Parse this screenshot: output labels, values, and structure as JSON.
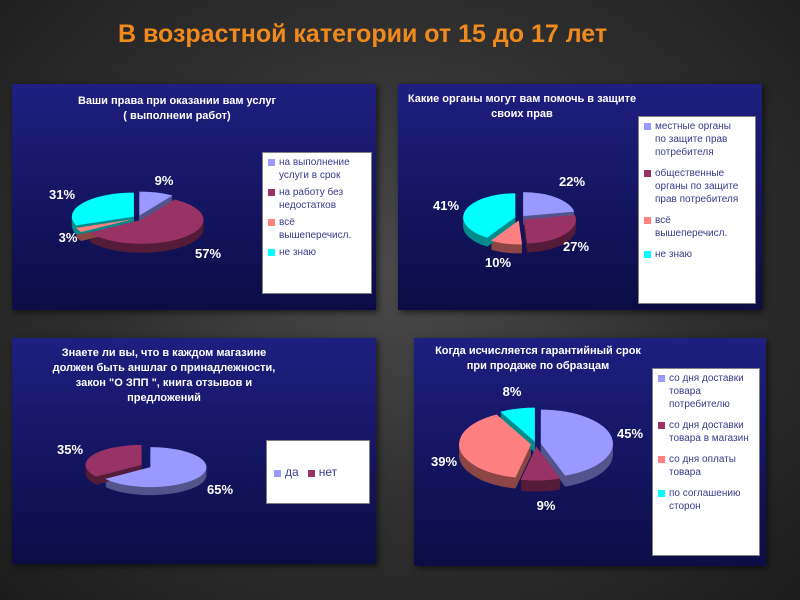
{
  "slide": {
    "title": "В возрастной категории от 15 до 17 лет"
  },
  "colors": {
    "periwinkle": "#9999ff",
    "maroon": "#993366",
    "salmon": "#ff8080",
    "cyan": "#00ffff"
  },
  "chart_data": [
    {
      "type": "pie",
      "title": "Ваши права при оказании вам услуг ( выполнеии работ)",
      "title_lines": [
        "Ваши права при оказании вам услуг",
        "( выполнеии работ)"
      ],
      "labels": [
        "на выполнение услуги в срок",
        "на работу без недостатков",
        "всё вышеперечисл.",
        "не знаю"
      ],
      "values": [
        9,
        57,
        3,
        31
      ],
      "value_labels": [
        "9%",
        "57%",
        "3%",
        "31%"
      ],
      "colors": [
        "#9999ff",
        "#993366",
        "#ff8080",
        "#00ffff"
      ],
      "legend_placement": "right"
    },
    {
      "type": "pie",
      "title": "Какие органы могут вам помочь в защите своих прав",
      "title_lines": [
        "Какие органы могут вам помочь в защите",
        "своих прав"
      ],
      "labels": [
        "местные органы по защите прав потребителя",
        "общественные органы по защите прав потребителя",
        "всё вышеперечисл.",
        "не знаю"
      ],
      "values": [
        22,
        27,
        10,
        41
      ],
      "value_labels": [
        "22%",
        "27%",
        "10%",
        "41%"
      ],
      "colors": [
        "#9999ff",
        "#993366",
        "#ff8080",
        "#00ffff"
      ],
      "legend_placement": "right"
    },
    {
      "type": "pie",
      "title": "Знаете ли вы, что в каждом магазине должен быть аншлаг о принадлежности, закон \"О ЗПП \", книга отзывов и предложений",
      "title_lines": [
        "Знаете ли вы, что в каждом магазине",
        "должен быть аншлаг о принадлежности,",
        "закон \"О ЗПП \", книга отзывов и",
        "предложений"
      ],
      "labels": [
        "да",
        "нет"
      ],
      "values": [
        65,
        35
      ],
      "value_labels": [
        "65%",
        "35%"
      ],
      "colors": [
        "#9999ff",
        "#993366"
      ],
      "legend_placement": "right"
    },
    {
      "type": "pie",
      "title": "Когда исчисляется гарантийный срок при продаже по образцам",
      "title_lines": [
        "Когда исчисляется гарантийный срок",
        "при продаже по образцам"
      ],
      "labels": [
        "со дня доставки товара потребителю",
        "со дня доставки товара в магазин",
        "со дня оплаты товара",
        "по соглашению сторон"
      ],
      "values": [
        45,
        9,
        39,
        8
      ],
      "value_labels": [
        "45%",
        "9%",
        "39%",
        "8%"
      ],
      "colors": [
        "#9999ff",
        "#993366",
        "#ff8080",
        "#00ffff"
      ],
      "legend_placement": "right"
    }
  ],
  "legends": [
    {
      "items": [
        {
          "lines": [
            "на выполнение",
            "услуги в срок"
          ]
        },
        {
          "lines": [
            "на работу без",
            "недостатков"
          ]
        },
        {
          "lines": [
            "всё",
            "вышеперечисл."
          ]
        },
        {
          "lines": [
            "не знаю"
          ]
        }
      ]
    },
    {
      "items": [
        {
          "lines": [
            "местные органы",
            "по защите прав",
            "потребителя"
          ]
        },
        {
          "lines": [
            "общественные",
            "органы по защите",
            "прав потребителя"
          ]
        },
        {
          "lines": [
            "всё",
            "вышеперечисл."
          ]
        },
        {
          "lines": [
            "не знаю"
          ]
        }
      ]
    },
    {
      "items": [
        {
          "lines": [
            "да"
          ]
        },
        {
          "lines": [
            "нет"
          ]
        }
      ]
    },
    {
      "items": [
        {
          "lines": [
            "со дня доставки",
            "товара",
            "потребителю"
          ]
        },
        {
          "lines": [
            "со дня доставки",
            "товара в магазин"
          ]
        },
        {
          "lines": [
            "со дня оплаты",
            "товара"
          ]
        },
        {
          "lines": [
            "по соглашению",
            "сторон"
          ]
        }
      ]
    }
  ]
}
